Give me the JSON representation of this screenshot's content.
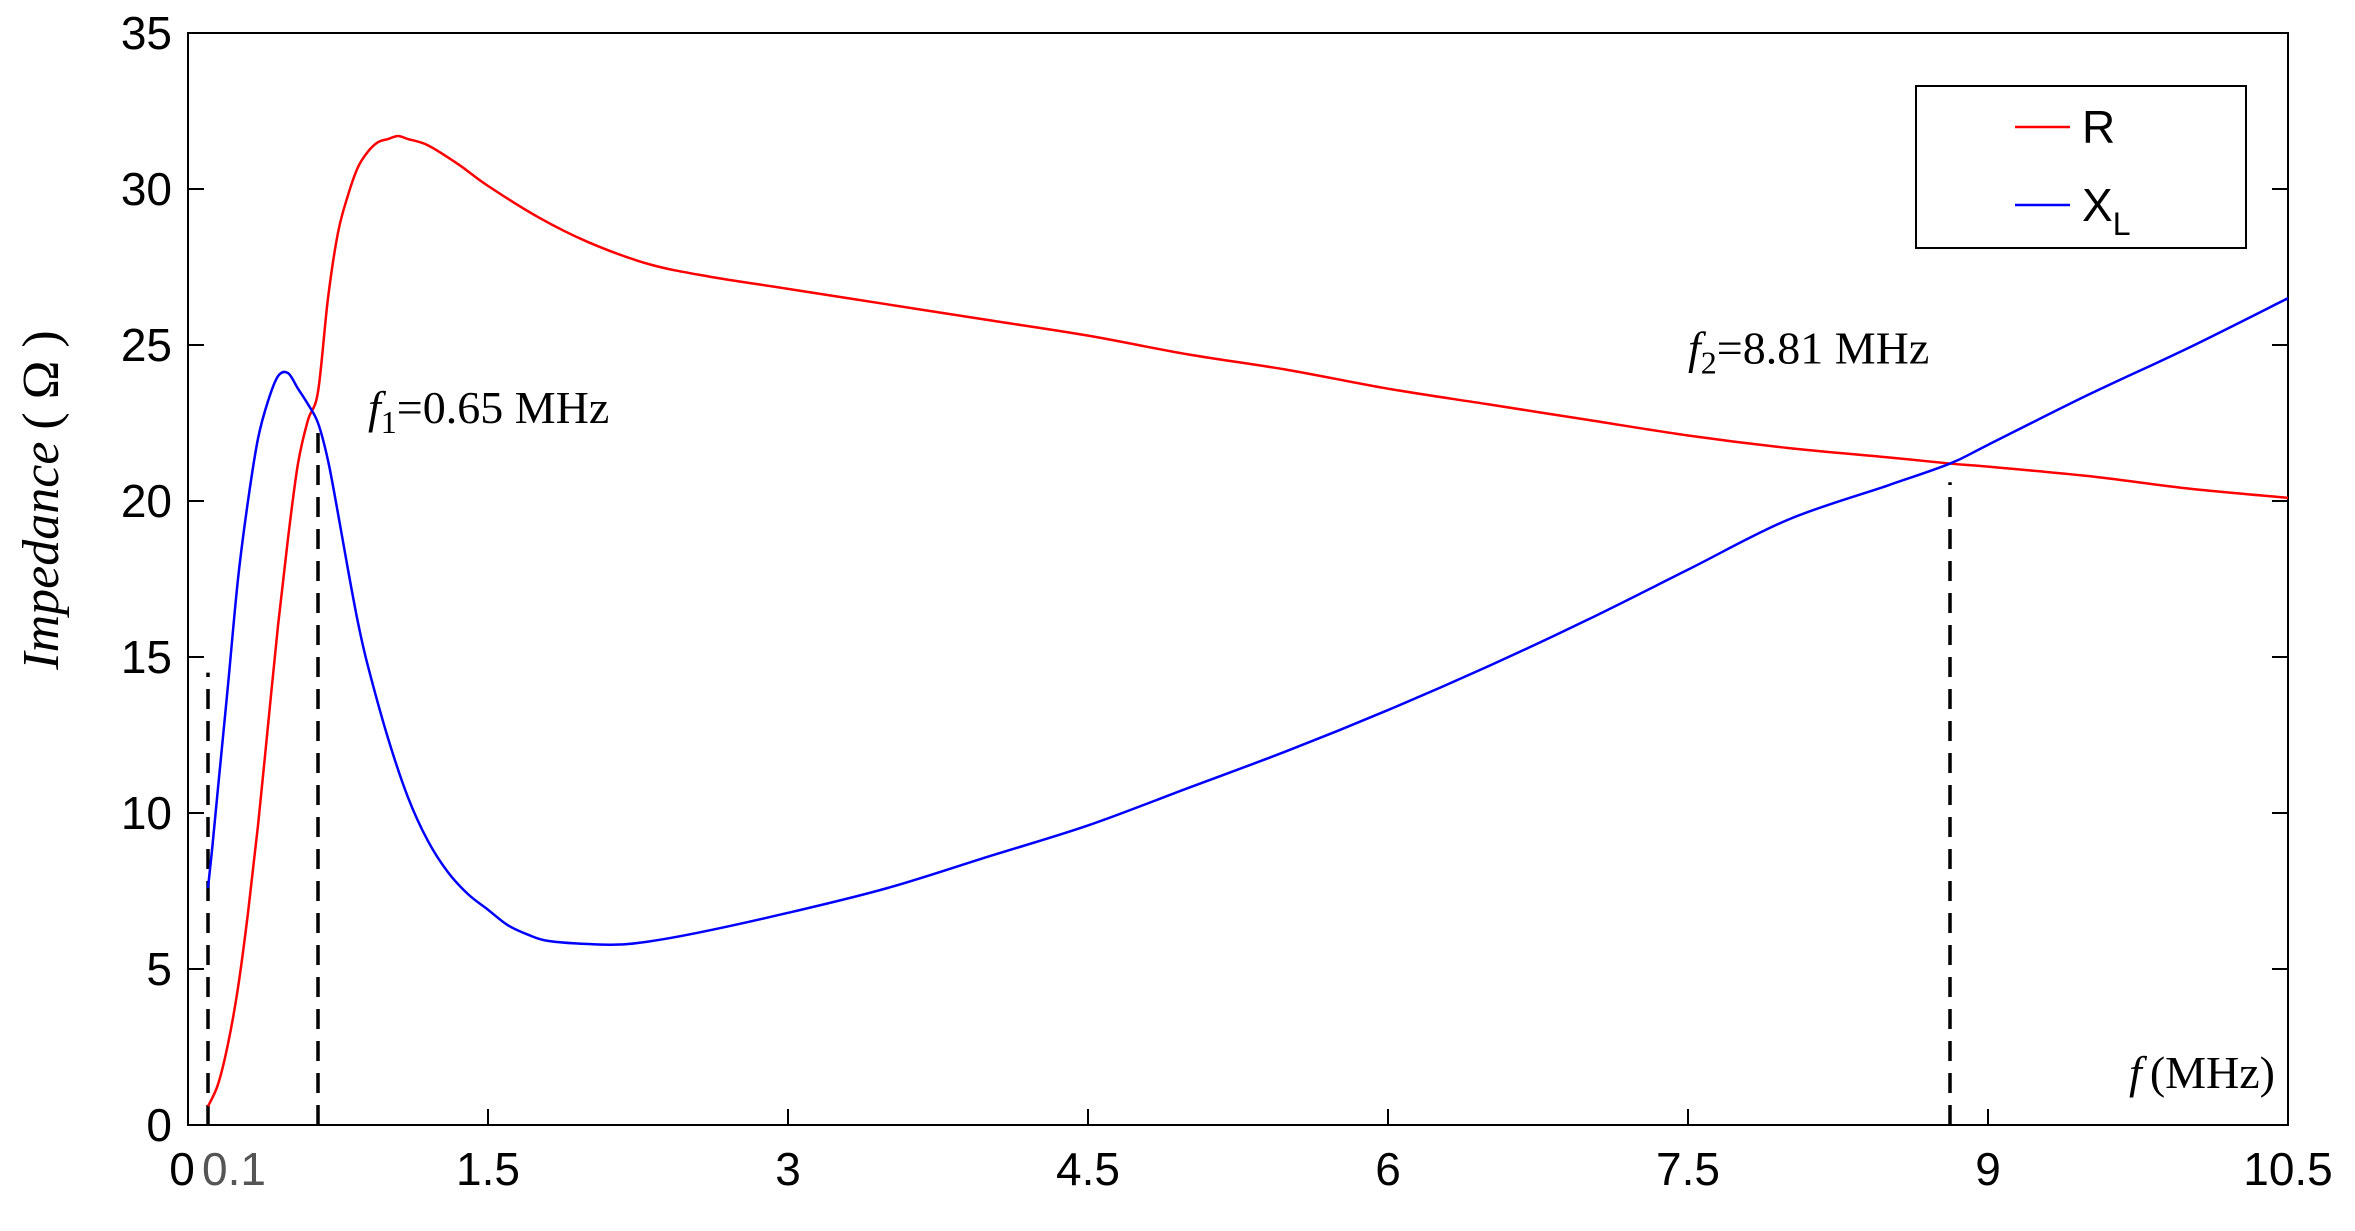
{
  "chart_data": {
    "type": "line",
    "xlabel": {
      "var": "f",
      "unit": "(MHz)"
    },
    "ylabel": {
      "text": "Impedance",
      "unit": "( Ω )"
    },
    "xlim": [
      0,
      10.5
    ],
    "ylim": [
      0,
      35
    ],
    "xticks": [
      {
        "value": 0,
        "label": "0"
      },
      {
        "value": 0.1,
        "label": "0.1",
        "style": "gray"
      },
      {
        "value": 1.5,
        "label": "1.5"
      },
      {
        "value": 3,
        "label": "3"
      },
      {
        "value": 4.5,
        "label": "4.5"
      },
      {
        "value": 6,
        "label": "6"
      },
      {
        "value": 7.5,
        "label": "7.5"
      },
      {
        "value": 9,
        "label": "9"
      },
      {
        "value": 10.5,
        "label": "10.5"
      }
    ],
    "yticks": [
      0,
      5,
      10,
      15,
      20,
      25,
      30,
      35
    ],
    "grid": false,
    "legend": {
      "placement": "top-right"
    },
    "series": [
      {
        "name": "R",
        "label": "R",
        "color": "#ff0000",
        "points": [
          [
            0.1,
            0.6
          ],
          [
            0.15,
            1.3
          ],
          [
            0.2,
            2.6
          ],
          [
            0.25,
            4.4
          ],
          [
            0.3,
            6.8
          ],
          [
            0.35,
            9.6
          ],
          [
            0.4,
            12.8
          ],
          [
            0.45,
            16.0
          ],
          [
            0.5,
            18.8
          ],
          [
            0.55,
            21.2
          ],
          [
            0.6,
            22.6
          ],
          [
            0.65,
            23.5
          ],
          [
            0.7,
            26.5
          ],
          [
            0.75,
            28.6
          ],
          [
            0.8,
            29.8
          ],
          [
            0.85,
            30.7
          ],
          [
            0.9,
            31.2
          ],
          [
            0.95,
            31.5
          ],
          [
            1.0,
            31.6
          ],
          [
            1.05,
            31.7
          ],
          [
            1.1,
            31.6
          ],
          [
            1.2,
            31.4
          ],
          [
            1.35,
            30.8
          ],
          [
            1.5,
            30.1
          ],
          [
            1.75,
            29.1
          ],
          [
            2.0,
            28.3
          ],
          [
            2.3,
            27.6
          ],
          [
            2.6,
            27.2
          ],
          [
            3.0,
            26.8
          ],
          [
            3.5,
            26.3
          ],
          [
            4.0,
            25.8
          ],
          [
            4.5,
            25.3
          ],
          [
            5.0,
            24.7
          ],
          [
            5.5,
            24.2
          ],
          [
            6.0,
            23.6
          ],
          [
            6.5,
            23.1
          ],
          [
            7.0,
            22.6
          ],
          [
            7.5,
            22.1
          ],
          [
            8.0,
            21.7
          ],
          [
            8.5,
            21.4
          ],
          [
            8.81,
            21.2
          ],
          [
            9.0,
            21.1
          ],
          [
            9.5,
            20.8
          ],
          [
            10.0,
            20.4
          ],
          [
            10.5,
            20.1
          ]
        ]
      },
      {
        "name": "X_L",
        "label": "X",
        "sub": "L",
        "color": "#0000ff",
        "points": [
          [
            0.1,
            7.6
          ],
          [
            0.12,
            8.8
          ],
          [
            0.15,
            10.8
          ],
          [
            0.2,
            14.1
          ],
          [
            0.25,
            17.5
          ],
          [
            0.3,
            20.0
          ],
          [
            0.35,
            22.0
          ],
          [
            0.4,
            23.2
          ],
          [
            0.45,
            24.0
          ],
          [
            0.5,
            24.1
          ],
          [
            0.55,
            23.6
          ],
          [
            0.6,
            23.1
          ],
          [
            0.65,
            22.5
          ],
          [
            0.7,
            21.3
          ],
          [
            0.75,
            19.6
          ],
          [
            0.8,
            17.8
          ],
          [
            0.85,
            16.1
          ],
          [
            0.9,
            14.7
          ],
          [
            1.0,
            12.4
          ],
          [
            1.1,
            10.5
          ],
          [
            1.2,
            9.1
          ],
          [
            1.3,
            8.1
          ],
          [
            1.4,
            7.4
          ],
          [
            1.5,
            6.9
          ],
          [
            1.6,
            6.4
          ],
          [
            1.7,
            6.1
          ],
          [
            1.8,
            5.9
          ],
          [
            2.0,
            5.8
          ],
          [
            2.2,
            5.8
          ],
          [
            2.5,
            6.1
          ],
          [
            3.0,
            6.8
          ],
          [
            3.5,
            7.6
          ],
          [
            4.0,
            8.6
          ],
          [
            4.5,
            9.6
          ],
          [
            5.0,
            10.8
          ],
          [
            5.5,
            12.0
          ],
          [
            6.0,
            13.3
          ],
          [
            6.5,
            14.7
          ],
          [
            7.0,
            16.2
          ],
          [
            7.5,
            17.8
          ],
          [
            8.0,
            19.4
          ],
          [
            8.5,
            20.5
          ],
          [
            8.81,
            21.2
          ],
          [
            9.0,
            21.8
          ],
          [
            9.5,
            23.4
          ],
          [
            10.0,
            24.9
          ],
          [
            10.5,
            26.5
          ]
        ]
      }
    ],
    "markers": [
      {
        "x": 0.1,
        "y_top": 14.5
      },
      {
        "x": 0.65,
        "y_top": 22.2
      },
      {
        "x": 8.81,
        "y_top": 20.6
      }
    ],
    "annotations": [
      {
        "var": "f",
        "sub": "1",
        "text": "=0.65 MHz",
        "x": 0.9,
        "y": 22.5
      },
      {
        "var": "f",
        "sub": "2",
        "text": "=8.81 MHz",
        "x": 7.5,
        "y": 24.4
      }
    ]
  }
}
